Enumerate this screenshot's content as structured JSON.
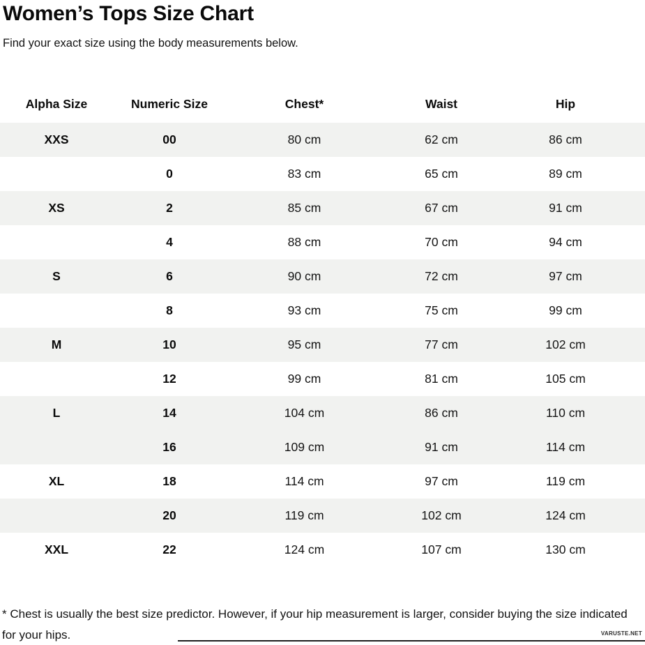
{
  "page": {
    "title": "Women’s Tops Size Chart",
    "subtitle": "Find your exact size using the body measurements below.",
    "footnote": "* Chest is usually the best size predictor. However, if your hip measurement is larger, consider buying the size indicated for your hips.",
    "watermark": "VARUSTE.NET"
  },
  "colors": {
    "shaded_row": "#f1f2f0",
    "text": "#111111"
  },
  "table": {
    "columns": [
      "Alpha Size",
      "Numeric Size",
      "Chest*",
      "Waist",
      "Hip"
    ],
    "rows": [
      {
        "alpha": "XXS",
        "numeric": "00",
        "chest": "80 cm",
        "waist": "62 cm",
        "hip": "86 cm",
        "shaded": true
      },
      {
        "alpha": "",
        "numeric": "0",
        "chest": "83 cm",
        "waist": "65 cm",
        "hip": "89 cm",
        "shaded": false
      },
      {
        "alpha": "XS",
        "numeric": "2",
        "chest": "85 cm",
        "waist": "67 cm",
        "hip": "91 cm",
        "shaded": true
      },
      {
        "alpha": "",
        "numeric": "4",
        "chest": "88 cm",
        "waist": "70 cm",
        "hip": "94 cm",
        "shaded": false
      },
      {
        "alpha": "S",
        "numeric": "6",
        "chest": "90 cm",
        "waist": "72 cm",
        "hip": "97 cm",
        "shaded": true
      },
      {
        "alpha": "",
        "numeric": "8",
        "chest": "93 cm",
        "waist": "75 cm",
        "hip": "99 cm",
        "shaded": false
      },
      {
        "alpha": "M",
        "numeric": "10",
        "chest": "95 cm",
        "waist": "77 cm",
        "hip": "102 cm",
        "shaded": true
      },
      {
        "alpha": "",
        "numeric": "12",
        "chest": "99 cm",
        "waist": "81 cm",
        "hip": "105 cm",
        "shaded": false
      },
      {
        "alpha": "L",
        "numeric": "14",
        "chest": "104 cm",
        "waist": "86 cm",
        "hip": "110 cm",
        "shaded": true
      },
      {
        "alpha": "",
        "numeric": "16",
        "chest": "109 cm",
        "waist": "91 cm",
        "hip": "114 cm",
        "shaded": true
      },
      {
        "alpha": "XL",
        "numeric": "18",
        "chest": "114 cm",
        "waist": "97 cm",
        "hip": "119 cm",
        "shaded": false
      },
      {
        "alpha": "",
        "numeric": "20",
        "chest": "119 cm",
        "waist": "102 cm",
        "hip": "124 cm",
        "shaded": true
      },
      {
        "alpha": "XXL",
        "numeric": "22",
        "chest": "124 cm",
        "waist": "107 cm",
        "hip": "130 cm",
        "shaded": false
      }
    ]
  }
}
